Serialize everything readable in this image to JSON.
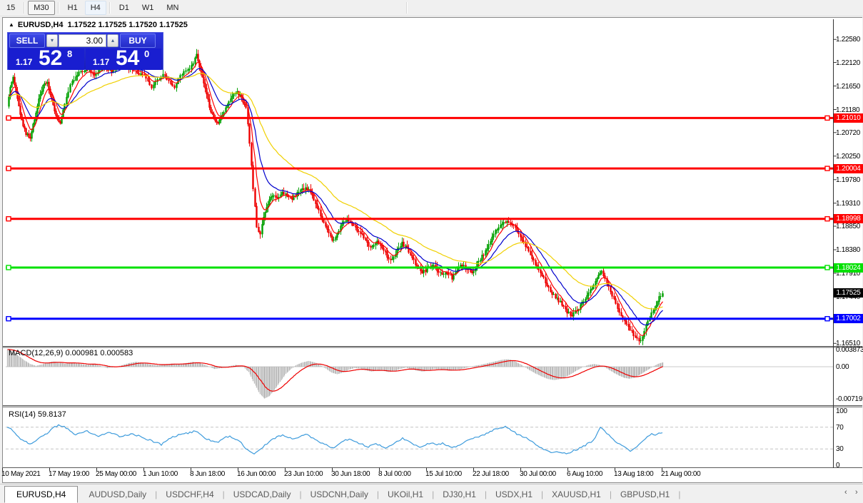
{
  "toolbar": {
    "buttons": [
      {
        "label": "15",
        "style": "plain"
      },
      {
        "label": "M30",
        "style": "raised"
      },
      {
        "label": "H1",
        "style": "plain"
      },
      {
        "label": "H4",
        "style": "lit"
      },
      {
        "label": "D1",
        "style": "plain"
      },
      {
        "label": "W1",
        "style": "plain"
      },
      {
        "label": "MN",
        "style": "plain"
      }
    ]
  },
  "chart_header": {
    "symbol": "EURUSD,H4",
    "quotes": "1.17522 1.17525 1.17520 1.17525",
    "collapse_icon": "▲"
  },
  "trade_panel": {
    "sell_label": "SELL",
    "buy_label": "BUY",
    "volume": "3.00",
    "spin_down_icon": "▾",
    "spin_up_icon": "▴",
    "sell_price": {
      "prefix": "1.17",
      "big": "52",
      "sup": "8"
    },
    "buy_price": {
      "prefix": "1.17",
      "big": "54",
      "sup": "0"
    }
  },
  "price_axis_ticks": [
    "1.22580",
    "1.22120",
    "1.21650",
    "1.21180",
    "1.20720",
    "1.20250",
    "1.19780",
    "1.19310",
    "1.18850",
    "1.18380",
    "1.17910",
    "1.17440",
    "1.16510"
  ],
  "colors": {
    "candle_up": "#00a000",
    "candle_down": "#ee0000",
    "ma_fast": "#ff0000",
    "ma_mid": "#0000cc",
    "ma_slow": "#f0d000",
    "hline_red": "#ff0000",
    "hline_green": "#00e000",
    "hline_blue": "#0000ff",
    "macd_hist": "#bcbcbc",
    "macd_signal": "#ee0000",
    "rsi_line": "#3d9bdc",
    "current_badge_bg": "#000000"
  },
  "indicators": {
    "macd_label": "MACD(12,26,9) 0.000981 0.000583",
    "macd_axis": [
      {
        "label": "0.003873",
        "v": 0.003873
      },
      {
        "label": "0.00",
        "v": 0
      },
      {
        "label": "-0.00719",
        "v": -0.00719
      }
    ],
    "rsi_label": "RSI(14) 59.8137",
    "rsi_axis": [
      {
        "label": "100",
        "v": 100
      },
      {
        "label": "70",
        "v": 70
      },
      {
        "label": "30",
        "v": 30
      },
      {
        "label": "0",
        "v": 0
      }
    ]
  },
  "tabs": {
    "items": [
      {
        "label": "EURUSD,H4",
        "active": true
      },
      {
        "label": "AUDUSD,Daily",
        "active": false
      },
      {
        "label": "USDCHF,H4",
        "active": false
      },
      {
        "label": "USDCAD,Daily",
        "active": false
      },
      {
        "label": "USDCNH,Daily",
        "active": false
      },
      {
        "label": "UKOil,H1",
        "active": false
      },
      {
        "label": "DJ30,H1",
        "active": false
      },
      {
        "label": "USDX,H1",
        "active": false
      },
      {
        "label": "XAUUSD,H1",
        "active": false
      },
      {
        "label": "GBPUSD,H1",
        "active": false
      }
    ],
    "scroll_left_icon": "‹",
    "scroll_right_icon": "›"
  },
  "chart_data": {
    "type": "candlestick",
    "symbol": "EURUSD",
    "timeframe": "H4",
    "x_labels": [
      "10 May 2021",
      "17 May 19:00",
      "25 May 00:00",
      "1 Jun 10:00",
      "8 Jun 18:00",
      "16 Jun 00:00",
      "23 Jun 10:00",
      "30 Jun 18:00",
      "8 Jul 00:00",
      "15 Jul 10:00",
      "22 Jul 18:00",
      "30 Jul 00:00",
      "6 Aug 10:00",
      "13 Aug 18:00",
      "21 Aug 00:00"
    ],
    "price_pane": {
      "ylim": [
        1.16471,
        1.22769
      ],
      "current_price": {
        "value": 1.17525,
        "label": "1.17525"
      },
      "hlines": [
        {
          "value": 1.2101,
          "label": "1.21010",
          "color": "#ff0000"
        },
        {
          "value": 1.20004,
          "label": "1.20004",
          "color": "#ff0000"
        },
        {
          "value": 1.18998,
          "label": "1.18998",
          "color": "#ff0000"
        },
        {
          "value": 1.18024,
          "label": "1.18024",
          "color": "#00e000"
        },
        {
          "value": 1.17002,
          "label": "1.17002",
          "color": "#0000ff"
        }
      ],
      "price_path": [
        10,
        1.2125,
        14,
        1.216,
        18,
        1.218,
        24,
        1.214,
        30,
        1.2095,
        36,
        1.207,
        42,
        1.206,
        48,
        1.21,
        54,
        1.214,
        60,
        1.2165,
        66,
        1.2172,
        72,
        1.214,
        78,
        1.2105,
        84,
        1.209,
        90,
        1.213,
        98,
        1.217,
        108,
        1.219,
        120,
        1.22,
        132,
        1.2188,
        144,
        1.2205,
        156,
        1.2192,
        168,
        1.221,
        180,
        1.2202,
        192,
        1.2192,
        204,
        1.2182,
        212,
        1.2165,
        220,
        1.218,
        228,
        1.2188,
        236,
        1.2178,
        244,
        1.2162,
        252,
        1.2185,
        260,
        1.2198,
        268,
        1.2205,
        275,
        1.2228,
        281,
        1.2195,
        287,
        1.216,
        293,
        1.2125,
        299,
        1.2098,
        305,
        1.2088,
        311,
        1.2108,
        318,
        1.213,
        325,
        1.2148,
        332,
        1.2152,
        338,
        1.2142,
        344,
        1.2125,
        349,
        1.205,
        354,
        1.196,
        359,
        1.1885,
        364,
        1.187,
        369,
        1.1902,
        375,
        1.1932,
        381,
        1.1948,
        388,
        1.1942,
        395,
        1.1952,
        402,
        1.1948,
        409,
        1.1942,
        416,
        1.195,
        423,
        1.1958,
        430,
        1.1962,
        437,
        1.1948,
        444,
        1.1925,
        451,
        1.19,
        458,
        1.1878,
        465,
        1.1858,
        472,
        1.1868,
        479,
        1.1892,
        486,
        1.19,
        493,
        1.1888,
        500,
        1.1878,
        507,
        1.1868,
        514,
        1.1852,
        521,
        1.1842,
        528,
        1.1856,
        535,
        1.1845,
        542,
        1.1825,
        549,
        1.1818,
        556,
        1.1838,
        563,
        1.1852,
        570,
        1.184,
        577,
        1.1822,
        584,
        1.1805,
        591,
        1.1792,
        598,
        1.18,
        605,
        1.1808,
        612,
        1.1798,
        619,
        1.1788,
        626,
        1.1792,
        633,
        1.1782,
        640,
        1.1798,
        647,
        1.1808,
        654,
        1.18,
        661,
        1.1792,
        668,
        1.1812,
        675,
        1.1825,
        682,
        1.184,
        689,
        1.1862,
        696,
        1.188,
        703,
        1.1892,
        710,
        1.1898,
        717,
        1.189,
        724,
        1.1878,
        731,
        1.1858,
        738,
        1.1842,
        745,
        1.1822,
        752,
        1.1802,
        759,
        1.1788,
        766,
        1.1768,
        773,
        1.1752,
        780,
        1.1742,
        787,
        1.1728,
        794,
        1.1714,
        801,
        1.1708,
        808,
        1.1718,
        815,
        1.1732,
        822,
        1.1748,
        829,
        1.1762,
        836,
        1.1778,
        842,
        1.1798,
        847,
        1.1782,
        852,
        1.1765,
        857,
        1.1748,
        862,
        1.1732,
        867,
        1.1715,
        872,
        1.17,
        877,
        1.1688,
        882,
        1.1678,
        887,
        1.167,
        892,
        1.1662,
        897,
        1.1658,
        902,
        1.1676,
        907,
        1.1698,
        912,
        1.1712,
        917,
        1.1722,
        921,
        1.1736,
        925,
        1.1748,
        928,
        1.1753
      ]
    },
    "macd_pane": {
      "ylim": [
        -0.00871,
        0.004355
      ],
      "values": [
        0.000981,
        0.000583
      ],
      "path": [
        10,
        0.0039,
        18,
        0.0034,
        26,
        0.0024,
        34,
        0.0014,
        42,
        0.0006,
        50,
        0.0002,
        58,
        0.0005,
        66,
        0.0009,
        74,
        0.0012,
        82,
        0.001,
        90,
        0.0007,
        100,
        0.0009,
        110,
        0.0007,
        120,
        0.0004,
        130,
        0.0006,
        140,
        0.0002,
        150,
        -0.0003,
        160,
        -0.0001,
        170,
        0.0003,
        180,
        0.0008,
        190,
        0.0011,
        200,
        0.0009,
        210,
        0.0005,
        220,
        0.0003,
        230,
        0.0005,
        240,
        0.0007,
        250,
        0.0006,
        260,
        0.0008,
        270,
        0.0011,
        280,
        0.0008,
        290,
        0.0002,
        300,
        -0.0005,
        310,
        -0.0003,
        320,
        0.0001,
        330,
        0.0004,
        340,
        0.0001,
        348,
        -0.0012,
        356,
        -0.0038,
        364,
        -0.0062,
        370,
        -0.0072,
        377,
        -0.0066,
        384,
        -0.0052,
        392,
        -0.0034,
        400,
        -0.0016,
        408,
        -0.0004,
        416,
        0.0005,
        424,
        0.001,
        432,
        0.0013,
        440,
        0.001,
        448,
        0.0004,
        456,
        -0.0004,
        464,
        -0.0013,
        472,
        -0.0017,
        480,
        -0.0013,
        488,
        -0.0007,
        496,
        -0.0003,
        504,
        -0.0004,
        512,
        -0.0008,
        520,
        -0.0011,
        528,
        -0.0008,
        536,
        -0.0009,
        544,
        -0.0012,
        552,
        -0.001,
        560,
        -0.0005,
        568,
        -0.0002,
        576,
        -0.0005,
        584,
        -0.0009,
        592,
        -0.0011,
        600,
        -0.0008,
        608,
        -0.0005,
        616,
        -0.0006,
        624,
        -0.0008,
        632,
        -0.0009,
        640,
        -0.0007,
        648,
        -0.0004,
        656,
        -0.0001,
        664,
        0.0002,
        672,
        0.0004,
        680,
        0.0007,
        688,
        0.001,
        696,
        0.0013,
        704,
        0.0016,
        712,
        0.0017,
        720,
        0.0013,
        728,
        0.0006,
        736,
        -0.0002,
        744,
        -0.001,
        752,
        -0.0017,
        760,
        -0.0023,
        768,
        -0.0028,
        776,
        -0.003,
        784,
        -0.0028,
        792,
        -0.0023,
        800,
        -0.0016,
        808,
        -0.0008,
        816,
        -0.0001,
        824,
        0.0004,
        832,
        0.0006,
        839,
        0.0004,
        846,
        0,
        853,
        -0.0007,
        860,
        -0.0014,
        867,
        -0.002,
        874,
        -0.0025,
        881,
        -0.0027,
        888,
        -0.0025,
        895,
        -0.0019,
        902,
        -0.0012,
        909,
        -0.0005,
        916,
        0.0002,
        922,
        0.0007,
        928,
        0.00098
      ]
    },
    "rsi_pane": {
      "ylim": [
        -3.95,
        106.58
      ],
      "levels": [
        70,
        30
      ],
      "value": 59.8137,
      "path": [
        10,
        70,
        18,
        64,
        26,
        52,
        34,
        44,
        42,
        40,
        50,
        45,
        58,
        52,
        66,
        58,
        74,
        68,
        82,
        74,
        90,
        71,
        98,
        64,
        106,
        56,
        114,
        60,
        122,
        63,
        130,
        58,
        138,
        53,
        146,
        57,
        154,
        60,
        162,
        56,
        170,
        52,
        178,
        56,
        186,
        58,
        194,
        54,
        202,
        50,
        210,
        46,
        218,
        42,
        226,
        38,
        234,
        46,
        242,
        52,
        250,
        56,
        258,
        58,
        266,
        60,
        274,
        63,
        282,
        55,
        290,
        48,
        298,
        44,
        306,
        42,
        314,
        50,
        322,
        54,
        330,
        48,
        338,
        42,
        344,
        30,
        350,
        24,
        356,
        20,
        362,
        27,
        368,
        33,
        374,
        40,
        380,
        46,
        388,
        52,
        396,
        56,
        404,
        52,
        412,
        48,
        420,
        53,
        428,
        58,
        436,
        52,
        444,
        46,
        452,
        40,
        460,
        35,
        468,
        32,
        476,
        40,
        484,
        48,
        492,
        46,
        500,
        42,
        508,
        38,
        516,
        34,
        524,
        40,
        532,
        37,
        540,
        32,
        548,
        36,
        556,
        44,
        564,
        50,
        572,
        44,
        580,
        37,
        588,
        33,
        596,
        38,
        604,
        42,
        612,
        37,
        620,
        41,
        628,
        36,
        636,
        33,
        644,
        38,
        652,
        44,
        660,
        48,
        668,
        52,
        676,
        55,
        684,
        60,
        692,
        65,
        700,
        69,
        708,
        71,
        716,
        64,
        724,
        58,
        732,
        53,
        740,
        48,
        748,
        41,
        756,
        33,
        764,
        27,
        772,
        24,
        780,
        25,
        788,
        23,
        796,
        22,
        804,
        27,
        812,
        31,
        820,
        37,
        828,
        43,
        834,
        50,
        841,
        70,
        847,
        63,
        853,
        55,
        859,
        47,
        865,
        41,
        871,
        36,
        877,
        31,
        883,
        27,
        889,
        30,
        895,
        38,
        901,
        46,
        907,
        53,
        913,
        57,
        918,
        54,
        923,
        58,
        928,
        59.8
      ]
    }
  }
}
